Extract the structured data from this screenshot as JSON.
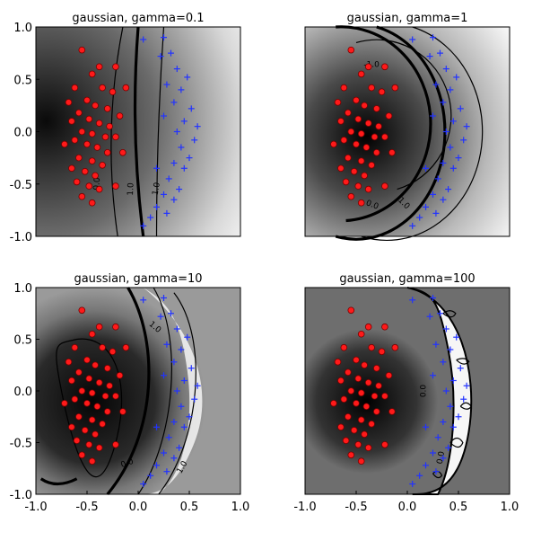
{
  "chart_data": [
    {
      "type": "heatmap",
      "title": "gaussian, gamma=0.1",
      "xlim": [
        -1.0,
        1.0
      ],
      "ylim": [
        -1.0,
        1.0
      ],
      "yticks": [
        "-1.0",
        "-0.5",
        "0.0",
        "0.5",
        "1.0"
      ],
      "xticks": [],
      "contour_labels": [
        "0.0",
        "1.0",
        "1.0"
      ],
      "gamma": 0.1,
      "decision_boundary_x": 0.05,
      "class_neg_marker": "red-circle",
      "class_pos_marker": "blue-plus"
    },
    {
      "type": "heatmap",
      "title": "gaussian, gamma=1",
      "xlim": [
        -1.0,
        1.0
      ],
      "ylim": [
        -1.0,
        1.0
      ],
      "yticks": [],
      "xticks": [],
      "contour_labels": [
        "-1.0",
        "0.0",
        "1.0"
      ],
      "gamma": 1,
      "class_neg_marker": "red-circle",
      "class_pos_marker": "blue-plus"
    },
    {
      "type": "heatmap",
      "title": "gaussian, gamma=10",
      "xlim": [
        -1.0,
        1.0
      ],
      "ylim": [
        -1.0,
        1.0
      ],
      "yticks": [
        "-1.0",
        "-0.5",
        "0.0",
        "0.5",
        "1.0"
      ],
      "xticks": [
        "-1.0",
        "-0.5",
        "0.0",
        "0.5",
        "1.0"
      ],
      "contour_labels": [
        "1.0",
        "0.0",
        "1.0"
      ],
      "gamma": 10,
      "class_neg_marker": "red-circle",
      "class_pos_marker": "blue-plus"
    },
    {
      "type": "heatmap",
      "title": "gaussian, gamma=100",
      "xlim": [
        -1.0,
        1.0
      ],
      "ylim": [
        -1.0,
        1.0
      ],
      "yticks": [],
      "xticks": [
        "-1.0",
        "-0.5",
        "0.0",
        "0.5",
        "1.0"
      ],
      "contour_labels": [
        "0.0",
        "0.0"
      ],
      "gamma": 100,
      "class_neg_marker": "red-circle",
      "class_pos_marker": "blue-plus"
    }
  ],
  "points": {
    "red": [
      [
        -0.55,
        0.78
      ],
      [
        -0.38,
        0.62
      ],
      [
        -0.22,
        0.62
      ],
      [
        -0.45,
        0.55
      ],
      [
        -0.62,
        0.42
      ],
      [
        -0.35,
        0.42
      ],
      [
        -0.25,
        0.38
      ],
      [
        -0.5,
        0.3
      ],
      [
        -0.42,
        0.25
      ],
      [
        -0.3,
        0.22
      ],
      [
        -0.58,
        0.18
      ],
      [
        -0.65,
        0.1
      ],
      [
        -0.48,
        0.12
      ],
      [
        -0.38,
        0.08
      ],
      [
        -0.28,
        0.05
      ],
      [
        -0.55,
        0.0
      ],
      [
        -0.45,
        -0.02
      ],
      [
        -0.32,
        -0.05
      ],
      [
        -0.22,
        -0.05
      ],
      [
        -0.62,
        -0.08
      ],
      [
        -0.72,
        -0.12
      ],
      [
        -0.5,
        -0.12
      ],
      [
        -0.4,
        -0.15
      ],
      [
        -0.3,
        -0.2
      ],
      [
        -0.58,
        -0.25
      ],
      [
        -0.45,
        -0.28
      ],
      [
        -0.35,
        -0.32
      ],
      [
        -0.65,
        -0.35
      ],
      [
        -0.52,
        -0.38
      ],
      [
        -0.42,
        -0.42
      ],
      [
        -0.6,
        -0.48
      ],
      [
        -0.48,
        -0.52
      ],
      [
        -0.38,
        -0.55
      ],
      [
        -0.55,
        -0.62
      ],
      [
        -0.45,
        -0.68
      ],
      [
        -0.22,
        -0.52
      ],
      [
        -0.15,
        -0.2
      ],
      [
        -0.18,
        0.15
      ],
      [
        -0.12,
        0.42
      ],
      [
        -0.68,
        0.28
      ]
    ],
    "blue": [
      [
        0.05,
        0.88
      ],
      [
        0.25,
        0.9
      ],
      [
        0.22,
        0.72
      ],
      [
        0.38,
        0.6
      ],
      [
        0.48,
        0.52
      ],
      [
        0.28,
        0.45
      ],
      [
        0.42,
        0.4
      ],
      [
        0.35,
        0.28
      ],
      [
        0.52,
        0.22
      ],
      [
        0.45,
        0.1
      ],
      [
        0.58,
        0.05
      ],
      [
        0.38,
        0.0
      ],
      [
        0.55,
        -0.08
      ],
      [
        0.42,
        -0.15
      ],
      [
        0.5,
        -0.25
      ],
      [
        0.35,
        -0.3
      ],
      [
        0.45,
        -0.35
      ],
      [
        0.3,
        -0.45
      ],
      [
        0.4,
        -0.55
      ],
      [
        0.25,
        -0.6
      ],
      [
        0.35,
        -0.65
      ],
      [
        0.18,
        -0.72
      ],
      [
        0.28,
        -0.78
      ],
      [
        0.12,
        -0.82
      ],
      [
        0.05,
        -0.9
      ],
      [
        0.18,
        -0.35
      ],
      [
        0.25,
        0.15
      ],
      [
        0.32,
        0.75
      ]
    ]
  }
}
